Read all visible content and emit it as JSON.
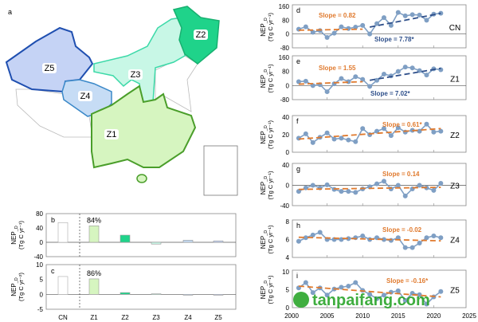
{
  "map": {
    "panel_label": "a",
    "zones": [
      {
        "id": "Z1",
        "label": "Z1",
        "fill": "#d6f5c0",
        "stroke": "#4a9e2a"
      },
      {
        "id": "Z2",
        "label": "Z2",
        "fill": "#1fd38a",
        "stroke": "#18b070"
      },
      {
        "id": "Z3",
        "label": "Z3",
        "fill": "#c8f7e6",
        "stroke": "#3cd9a8"
      },
      {
        "id": "Z4",
        "label": "Z4",
        "fill": "#c6dcf5",
        "stroke": "#3a88c8"
      },
      {
        "id": "Z5",
        "label": "Z5",
        "fill": "#c5d3f5",
        "stroke": "#1f4fb0"
      }
    ]
  },
  "chart_data": [
    {
      "panel": "b",
      "type": "bar",
      "ylabel": "NEP_D",
      "yunit": "(Tg C yr⁻¹)",
      "categories": [
        "CN",
        "Z1",
        "Z2",
        "Z3",
        "Z4",
        "Z5"
      ],
      "values": [
        55,
        46,
        20,
        -5,
        6,
        4
      ],
      "colors": [
        "#ffffff",
        "#d6f5c0",
        "#1fd38a",
        "#c8f7e6",
        "#c6dcf5",
        "#c5d3f5"
      ],
      "annotation": "84%",
      "ylim": [
        -40,
        80
      ],
      "yticks": [
        80,
        40,
        0,
        -40
      ]
    },
    {
      "panel": "c",
      "type": "bar",
      "ylabel": "NEP_D",
      "yunit": "(Tg C yr⁻²)",
      "categories": [
        "CN",
        "Z1",
        "Z2",
        "Z3",
        "Z4",
        "Z5"
      ],
      "values": [
        6,
        5.2,
        0.6,
        0.2,
        -0.1,
        -0.2
      ],
      "colors": [
        "#ffffff",
        "#d6f5c0",
        "#1fd38a",
        "#c8f7e6",
        "#c6dcf5",
        "#c5d3f5"
      ],
      "annotation": "86%",
      "ylim": [
        -5,
        10
      ],
      "yticks": [
        10,
        5,
        0,
        -5
      ]
    },
    {
      "panel": "d",
      "type": "line",
      "region": "CN",
      "ylabel": "NEP_D",
      "yunit": "(Tg C yr⁻¹)",
      "x": [
        2001,
        2002,
        2003,
        2004,
        2005,
        2006,
        2007,
        2008,
        2009,
        2010,
        2011,
        2012,
        2013,
        2014,
        2015,
        2016,
        2017,
        2018,
        2019,
        2020,
        2021
      ],
      "values": [
        28,
        42,
        10,
        20,
        -20,
        5,
        42,
        32,
        40,
        50,
        0,
        60,
        95,
        50,
        125,
        105,
        112,
        110,
        80,
        115,
        120
      ],
      "trends": [
        {
          "label": "Slope = 0.82",
          "from": 2001,
          "to": 2010,
          "start": 22,
          "end": 28,
          "color": "#e07a2e"
        },
        {
          "label": "Slope = 7.78*",
          "from": 2011,
          "to": 2021,
          "start": 40,
          "end": 120,
          "color": "#2e4f8a"
        }
      ],
      "ylim": [
        -80,
        160
      ],
      "yticks": [
        160,
        80,
        0,
        -80
      ]
    },
    {
      "panel": "e",
      "type": "line",
      "region": "Z1",
      "ylabel": "NEP_D",
      "yunit": "(Tg C yr⁻¹)",
      "x": [
        2001,
        2002,
        2003,
        2004,
        2005,
        2006,
        2007,
        2008,
        2009,
        2010,
        2011,
        2012,
        2013,
        2014,
        2015,
        2016,
        2017,
        2018,
        2019,
        2020,
        2021
      ],
      "values": [
        22,
        25,
        0,
        5,
        -35,
        10,
        40,
        22,
        50,
        35,
        -5,
        30,
        65,
        55,
        80,
        105,
        100,
        85,
        60,
        95,
        90
      ],
      "trends": [
        {
          "label": "Slope = 1.55",
          "from": 2001,
          "to": 2010,
          "start": 8,
          "end": 22,
          "color": "#e07a2e"
        },
        {
          "label": "Slope = 7.02*",
          "from": 2011,
          "to": 2021,
          "start": 30,
          "end": 98,
          "color": "#2e4f8a"
        }
      ],
      "ylim": [
        -80,
        160
      ],
      "yticks": [
        160,
        80,
        0,
        -80
      ]
    },
    {
      "panel": "f",
      "type": "line",
      "region": "Z2",
      "ylabel": "NEP_D",
      "yunit": "(Tg C yr⁻¹)",
      "x": [
        2001,
        2002,
        2003,
        2004,
        2005,
        2006,
        2007,
        2008,
        2009,
        2010,
        2011,
        2012,
        2013,
        2014,
        2015,
        2016,
        2017,
        2018,
        2019,
        2020,
        2021
      ],
      "values": [
        16,
        21,
        11,
        17,
        22,
        15,
        16,
        14,
        12,
        27,
        20,
        24,
        27,
        19,
        28,
        23,
        25,
        24,
        32,
        23,
        24
      ],
      "trends": [
        {
          "label": "Slope = 0.61*",
          "from": 2001,
          "to": 2021,
          "start": 15,
          "end": 27,
          "color": "#e07a2e"
        }
      ],
      "ylim": [
        0,
        40
      ],
      "yticks": [
        40,
        20,
        0
      ]
    },
    {
      "panel": "g",
      "type": "line",
      "region": "Z3",
      "ylabel": "NEP_D",
      "yunit": "(Tg C yr⁻¹)",
      "x": [
        2001,
        2002,
        2003,
        2004,
        2005,
        2006,
        2007,
        2008,
        2009,
        2010,
        2011,
        2012,
        2013,
        2014,
        2015,
        2016,
        2017,
        2018,
        2019,
        2020,
        2021
      ],
      "values": [
        -12,
        -5,
        0,
        -5,
        1,
        -8,
        -12,
        -12,
        -14,
        -7,
        -3,
        3,
        8,
        -7,
        0,
        -21,
        -7,
        0,
        -5,
        -10,
        4
      ],
      "trends": [
        {
          "label": "Slope = 0.14",
          "from": 2001,
          "to": 2021,
          "start": -8,
          "end": -4,
          "color": "#e07a2e"
        }
      ],
      "ylim": [
        -40,
        40
      ],
      "yticks": [
        40,
        0,
        -40
      ]
    },
    {
      "panel": "h",
      "type": "line",
      "region": "Z4",
      "ylabel": "NEP_D",
      "yunit": "(Tg C yr⁻¹)",
      "x": [
        2001,
        2002,
        2003,
        2004,
        2005,
        2006,
        2007,
        2008,
        2009,
        2010,
        2011,
        2012,
        2013,
        2014,
        2015,
        2016,
        2017,
        2018,
        2019,
        2020,
        2021
      ],
      "values": [
        5.8,
        6.2,
        6.5,
        6.8,
        6.0,
        6.0,
        6.0,
        6.1,
        6.2,
        6.4,
        6.0,
        6.2,
        6.0,
        5.9,
        6.2,
        5.1,
        5.1,
        5.6,
        6.2,
        6.4,
        6.2
      ],
      "trends": [
        {
          "label": "Slope = -0.02",
          "from": 2001,
          "to": 2021,
          "start": 6.25,
          "end": 5.85,
          "color": "#e07a2e"
        }
      ],
      "ylim": [
        4,
        8
      ],
      "yticks": [
        8,
        6,
        4
      ]
    },
    {
      "panel": "i",
      "type": "line",
      "region": "Z5",
      "ylabel": "NEP_D",
      "yunit": "(Tg C yr⁻¹)",
      "x": [
        2001,
        2002,
        2003,
        2004,
        2005,
        2006,
        2007,
        2008,
        2009,
        2010,
        2011,
        2012,
        2013,
        2014,
        2015,
        2016,
        2017,
        2018,
        2019,
        2020,
        2021
      ],
      "values": [
        5.5,
        7.0,
        4.2,
        5.5,
        3.5,
        5.2,
        5.7,
        6.0,
        7.0,
        4.8,
        3.7,
        2.5,
        3.5,
        4.3,
        4.7,
        2.0,
        4.0,
        3.6,
        1.0,
        3.0,
        4.5
      ],
      "trends": [
        {
          "label": "Slope = -0.16*",
          "from": 2001,
          "to": 2021,
          "start": 6.0,
          "end": 3.0,
          "color": "#e07a2e"
        }
      ],
      "ylim": [
        0,
        10
      ],
      "yticks": [
        10,
        5,
        0
      ],
      "xticks": [
        2000,
        2005,
        2010,
        2015,
        2020,
        2025
      ]
    }
  ],
  "series_color": "#7f9fc4",
  "watermark": "tanpaifang.com"
}
